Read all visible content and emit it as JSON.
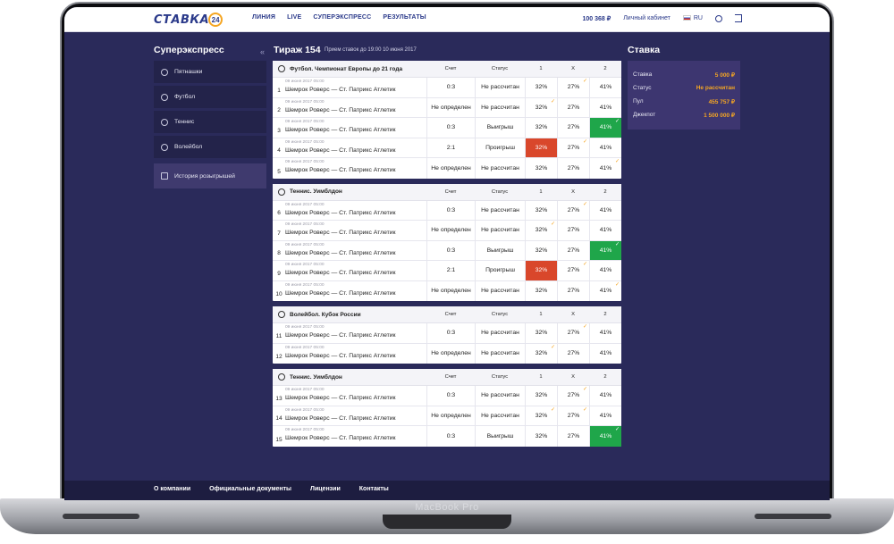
{
  "device_label": "MacBook Pro",
  "header": {
    "logo_text": "СТАВКА",
    "logo_badge": "24",
    "nav": [
      "ЛИНИЯ",
      "LIVE",
      "СУПЕРЭКСПРЕСС",
      "РЕЗУЛЬТАТЫ"
    ],
    "balance": "100 368 ₽",
    "account": "Личный кабинет",
    "lang": "RU"
  },
  "sidebar": {
    "title": "Суперэкспресс",
    "items": [
      {
        "label": "Пятнашки",
        "icon": "dots-icon"
      },
      {
        "label": "Футбол",
        "icon": "football-icon"
      },
      {
        "label": "Теннис",
        "icon": "tennis-icon"
      },
      {
        "label": "Волейбол",
        "icon": "volleyball-icon"
      }
    ],
    "history": "История розыгрышей"
  },
  "draw": {
    "title": "Тираж 154",
    "subtitle": "Прием ставок до 19:00 10 июня 2017",
    "back_glyph": "«"
  },
  "columns": {
    "score": "Счет",
    "status": "Статус",
    "o1": "1",
    "ox": "X",
    "o2": "2"
  },
  "tables": [
    {
      "name": "Футбол. Чемпионат Европы до 21 года",
      "icon": "football-icon",
      "rows": [
        {
          "n": "1",
          "date": "09 июня 2017 05:00",
          "teams": "Шемрок Роверс — Ст. Патрикс Атлетик",
          "score": "0:3",
          "status": "Не рассчитан",
          "o1": "32%",
          "ox": "27%",
          "o2": "41%",
          "win": "",
          "lose": "",
          "ticks": [
            "ox"
          ]
        },
        {
          "n": "2",
          "date": "09 июня 2017 05:00",
          "teams": "Шемрок Роверс — Ст. Патрикс Атлетик",
          "score": "Не определен",
          "status": "Не рассчитан",
          "o1": "32%",
          "ox": "27%",
          "o2": "41%",
          "win": "",
          "lose": "",
          "ticks": [
            "o1"
          ]
        },
        {
          "n": "3",
          "date": "09 июня 2017 05:00",
          "teams": "Шемрок Роверс — Ст. Патрикс Атлетик",
          "score": "0:3",
          "status": "Выигрыш",
          "o1": "32%",
          "ox": "27%",
          "o2": "41%",
          "win": "o2",
          "lose": "",
          "ticks": [
            "o2"
          ]
        },
        {
          "n": "4",
          "date": "09 июня 2017 05:00",
          "teams": "Шемрок Роверс — Ст. Патрикс Атлетик",
          "score": "2:1",
          "status": "Проигрыш",
          "o1": "32%",
          "ox": "27%",
          "o2": "41%",
          "win": "",
          "lose": "o1",
          "ticks": [
            "ox"
          ]
        },
        {
          "n": "5",
          "date": "09 июня 2017 05:00",
          "teams": "Шемрок Роверс — Ст. Патрикс Атлетик",
          "score": "Не определен",
          "status": "Не рассчитан",
          "o1": "32%",
          "ox": "27%",
          "o2": "41%",
          "win": "",
          "lose": "",
          "ticks": [
            "o2"
          ]
        }
      ]
    },
    {
      "name": "Теннис. Уимблдон",
      "icon": "tennis-icon",
      "rows": [
        {
          "n": "6",
          "date": "09 июня 2017 05:00",
          "teams": "Шемрок Роверс — Ст. Патрикс Атлетик",
          "score": "0:3",
          "status": "Не рассчитан",
          "o1": "32%",
          "ox": "27%",
          "o2": "41%",
          "win": "",
          "lose": "",
          "ticks": [
            "ox"
          ]
        },
        {
          "n": "7",
          "date": "09 июня 2017 05:00",
          "teams": "Шемрок Роверс — Ст. Патрикс Атлетик",
          "score": "Не определен",
          "status": "Не рассчитан",
          "o1": "32%",
          "ox": "27%",
          "o2": "41%",
          "win": "",
          "lose": "",
          "ticks": [
            "o1"
          ]
        },
        {
          "n": "8",
          "date": "09 июня 2017 05:00",
          "teams": "Шемрок Роверс — Ст. Патрикс Атлетик",
          "score": "0:3",
          "status": "Выигрыш",
          "o1": "32%",
          "ox": "27%",
          "o2": "41%",
          "win": "o2",
          "lose": "",
          "ticks": [
            "o2"
          ]
        },
        {
          "n": "9",
          "date": "09 июня 2017 05:00",
          "teams": "Шемрок Роверс — Ст. Патрикс Атлетик",
          "score": "2:1",
          "status": "Проигрыш",
          "o1": "32%",
          "ox": "27%",
          "o2": "41%",
          "win": "",
          "lose": "o1",
          "ticks": [
            "ox"
          ]
        },
        {
          "n": "10",
          "date": "09 июня 2017 05:00",
          "teams": "Шемрок Роверс — Ст. Патрикс Атлетик",
          "score": "Не определен",
          "status": "Не рассчитан",
          "o1": "32%",
          "ox": "27%",
          "o2": "41%",
          "win": "",
          "lose": "",
          "ticks": [
            "o2"
          ]
        }
      ]
    },
    {
      "name": "Волейбол. Кубок России",
      "icon": "volleyball-icon",
      "rows": [
        {
          "n": "11",
          "date": "09 июня 2017 05:00",
          "teams": "Шемрок Роверс — Ст. Патрикс Атлетик",
          "score": "0:3",
          "status": "Не рассчитан",
          "o1": "32%",
          "ox": "27%",
          "o2": "41%",
          "win": "",
          "lose": "",
          "ticks": [
            "ox"
          ]
        },
        {
          "n": "12",
          "date": "09 июня 2017 05:00",
          "teams": "Шемрок Роверс — Ст. Патрикс Атлетик",
          "score": "Не определен",
          "status": "Не рассчитан",
          "o1": "32%",
          "ox": "27%",
          "o2": "41%",
          "win": "",
          "lose": "",
          "ticks": [
            "o1"
          ]
        }
      ]
    },
    {
      "name": "Теннис. Уимблдон",
      "icon": "tennis-icon",
      "rows": [
        {
          "n": "13",
          "date": "09 июня 2017 05:00",
          "teams": "Шемрок Роверс — Ст. Патрикс Атлетик",
          "score": "0:3",
          "status": "Не рассчитан",
          "o1": "32%",
          "ox": "27%",
          "o2": "41%",
          "win": "",
          "lose": "",
          "ticks": [
            "ox"
          ]
        },
        {
          "n": "14",
          "date": "09 июня 2017 05:00",
          "teams": "Шемрок Роверс — Ст. Патрикс Атлетик",
          "score": "Не определен",
          "status": "Не рассчитан",
          "o1": "32%",
          "ox": "27%",
          "o2": "41%",
          "win": "",
          "lose": "",
          "ticks": [
            "o1",
            "ox"
          ]
        },
        {
          "n": "15",
          "date": "09 июня 2017 05:00",
          "teams": "Шемрок Роверс — Ст. Патрикс Атлетик",
          "score": "0:3",
          "status": "Выигрыш",
          "o1": "32%",
          "ox": "27%",
          "o2": "41%",
          "win": "o2",
          "lose": "",
          "ticks": [
            "o2"
          ]
        }
      ]
    }
  ],
  "bet": {
    "title": "Ставка",
    "rows": [
      {
        "label": "Ставка",
        "value": "5 000 ₽"
      },
      {
        "label": "Статус",
        "value": "Не рассчитан"
      },
      {
        "label": "Пул",
        "value": "455 757 ₽"
      },
      {
        "label": "Джекпот",
        "value": "1 500 000 ₽"
      }
    ]
  },
  "footer": {
    "links": [
      "О компании",
      "Официальные документы",
      "Лицензии",
      "Контакты"
    ]
  },
  "colors": {
    "win": "#1fa64a",
    "lose": "#d9472b",
    "accent": "#f5a623",
    "bg": "#2a2a5a"
  }
}
